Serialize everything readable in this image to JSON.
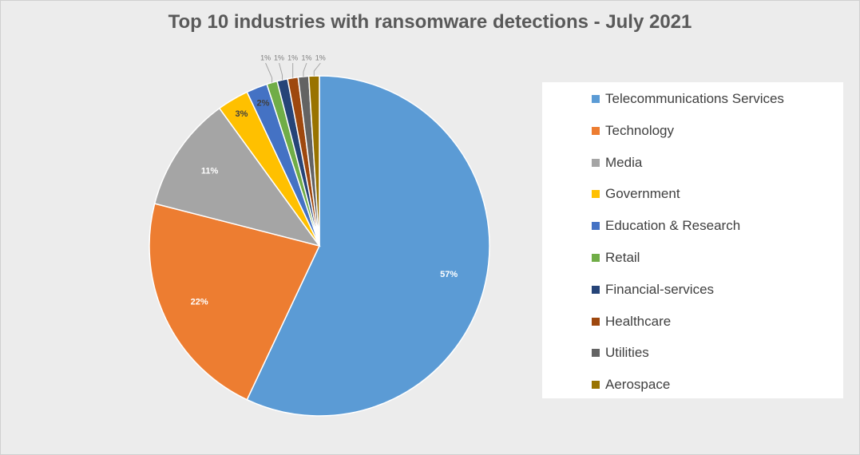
{
  "chart_data": {
    "type": "pie",
    "title": "Top 10 industries with ransomware detections - July 2021",
    "legend_position": "right",
    "slices": [
      {
        "name": "Telecommunications Services",
        "value": 57,
        "label": "57%",
        "color": "#5b9bd5"
      },
      {
        "name": "Technology",
        "value": 22,
        "label": "22%",
        "color": "#ed7d31"
      },
      {
        "name": "Media",
        "value": 11,
        "label": "11%",
        "color": "#a5a5a5"
      },
      {
        "name": "Government",
        "value": 3,
        "label": "3%",
        "color": "#ffc000"
      },
      {
        "name": "Education & Research",
        "value": 2,
        "label": "2%",
        "color": "#4472c4"
      },
      {
        "name": "Retail",
        "value": 1,
        "label": "1%",
        "color": "#70ad47"
      },
      {
        "name": "Financial-services",
        "value": 1,
        "label": "1%",
        "color": "#264478"
      },
      {
        "name": "Healthcare",
        "value": 1,
        "label": "1%",
        "color": "#9e480e"
      },
      {
        "name": "Utilities",
        "value": 1,
        "label": "1%",
        "color": "#636363"
      },
      {
        "name": "Aerospace",
        "value": 1,
        "label": "1%",
        "color": "#997300"
      }
    ]
  }
}
